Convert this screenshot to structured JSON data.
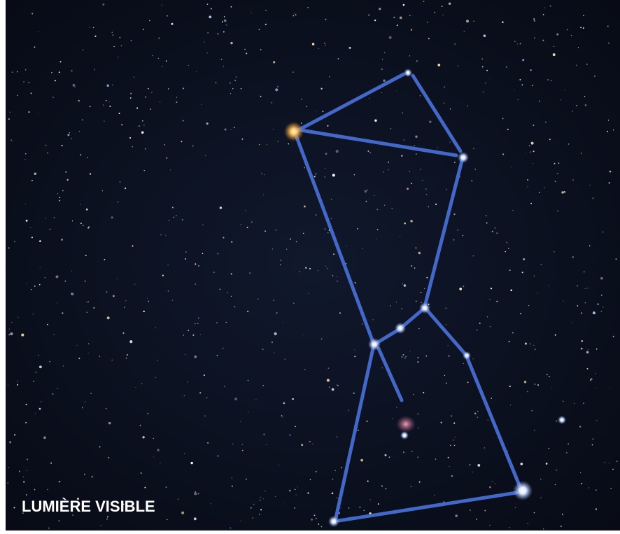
{
  "caption": "LUMIÈRE VISIBLE"
}
